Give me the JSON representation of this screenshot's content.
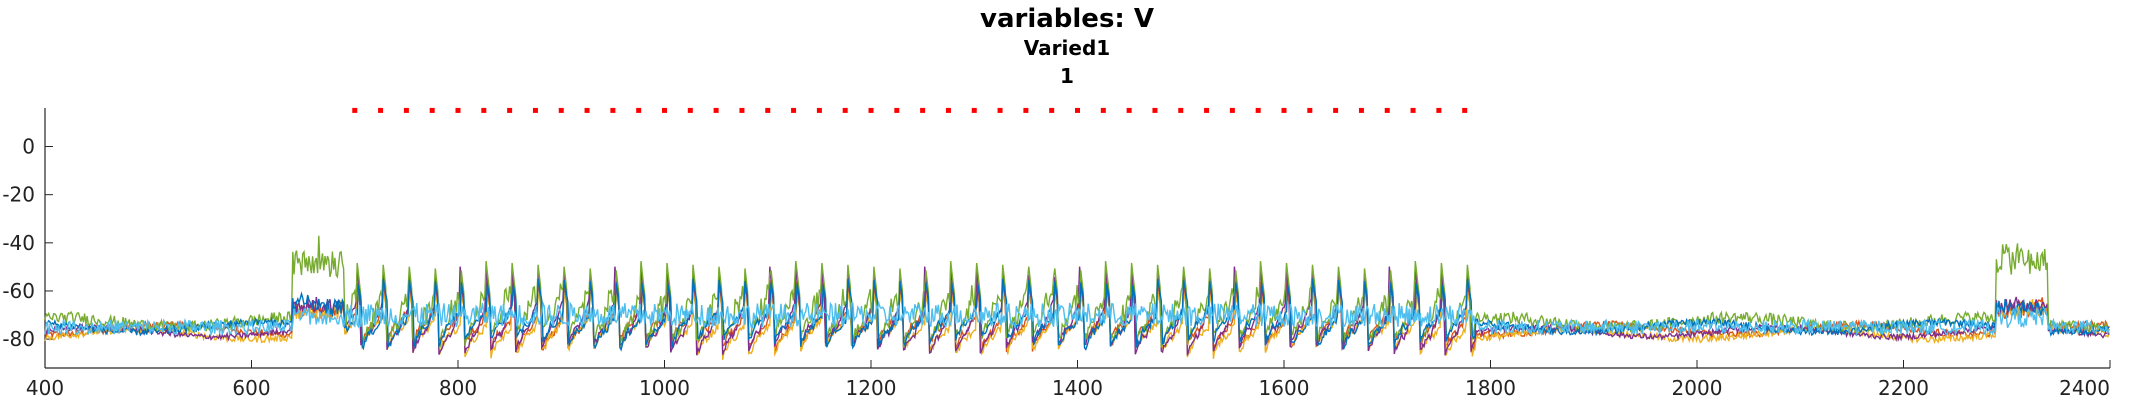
{
  "chart_data": {
    "type": "line",
    "title": "variables: V",
    "subtitle": "Varied1",
    "subtitle2": "1",
    "xlim": [
      400,
      2400
    ],
    "ylim": [
      -92,
      16
    ],
    "x_ticks": [
      400,
      600,
      800,
      1000,
      1200,
      1400,
      1600,
      1800,
      2000,
      2200,
      2400
    ],
    "y_ticks": [
      0,
      -20,
      -40,
      -60,
      -80
    ],
    "grid": false,
    "stimulus_markers": {
      "color": "#ff0000",
      "y": 15,
      "x_start": 700,
      "x_end": 1775,
      "step": 25
    },
    "series": [
      {
        "color": "#d95319",
        "phase": 0.0,
        "amp": 0.55,
        "base": -76,
        "noise": 1.5
      },
      {
        "color": "#edb120",
        "phase": 0.1,
        "amp": 0.45,
        "base": -78,
        "noise": 1.5
      },
      {
        "color": "#7e2f8e",
        "phase": 0.0,
        "amp": 0.95,
        "base": -77,
        "noise": 1.2
      },
      {
        "color": "#77ac30",
        "phase": 0.05,
        "amp": 0.7,
        "base": -73,
        "noise": 2.5
      },
      {
        "color": "#0072bd",
        "phase": 0.15,
        "amp": 0.5,
        "base": -75,
        "noise": 1.5
      },
      {
        "color": "#4dbeee",
        "phase": 0.3,
        "amp": 0.12,
        "base": -78,
        "noise": 2.0
      }
    ]
  }
}
